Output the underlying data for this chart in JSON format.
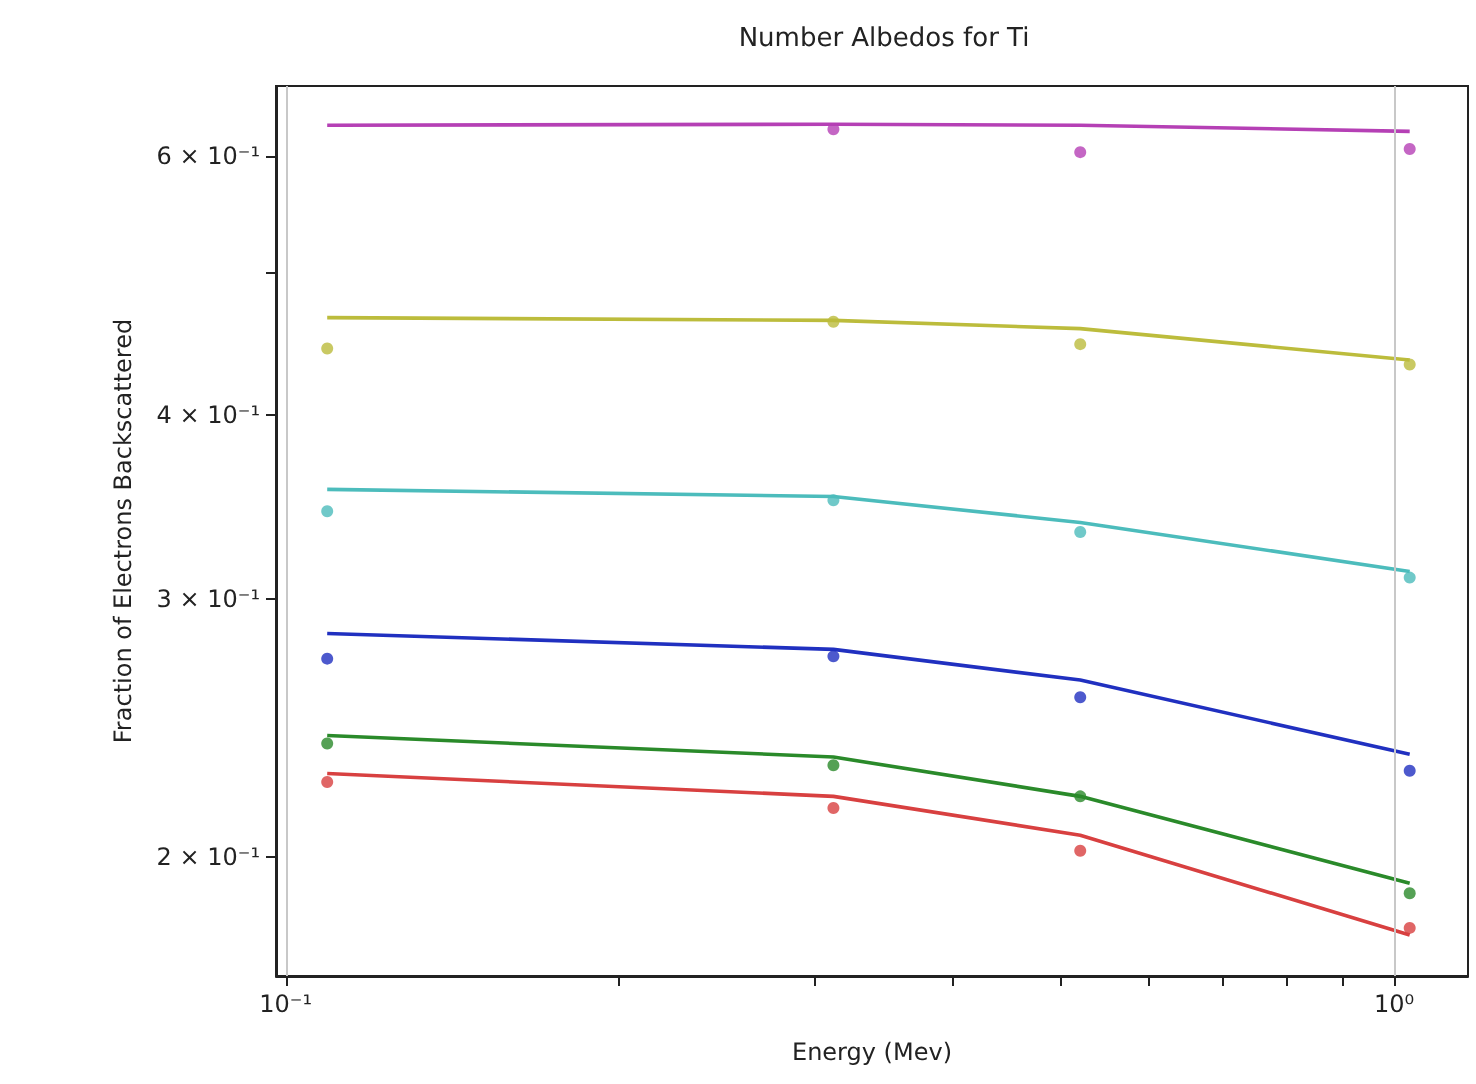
{
  "chart_data": {
    "type": "scatter",
    "title": "Number Albedos for Ti",
    "xlabel": "Energy (Mev)",
    "ylabel": "Fraction of Electrons Backscattered",
    "log": "xy",
    "grid": "x",
    "marker": "circle",
    "xlim": [
      0.098,
      1.166
    ],
    "xticks": [
      {
        "value": 0.1,
        "label": "10⁻¹"
      },
      {
        "value": 0.2,
        "label": null
      },
      {
        "value": 0.3,
        "label": null
      },
      {
        "value": 0.4,
        "label": null
      },
      {
        "value": 0.5,
        "label": null
      },
      {
        "value": 0.6,
        "label": null
      },
      {
        "value": 0.7,
        "label": null
      },
      {
        "value": 0.8,
        "label": null
      },
      {
        "value": 0.9,
        "label": null
      },
      {
        "value": 1,
        "label": "10⁰"
      }
    ],
    "ylim": [
      0.166,
      0.67
    ],
    "yticks": [
      {
        "value": 0.2,
        "label": "2 × 10⁻¹"
      },
      {
        "value": 0.3,
        "label": "3 × 10⁻¹"
      },
      {
        "value": 0.4,
        "label": "4 × 10⁻¹"
      },
      {
        "value": 0.5,
        "label": null
      },
      {
        "value": 0.6,
        "label": "6 × 10⁻¹"
      }
    ],
    "series": [
      {
        "color": "#b540b5",
        "x": [
          0.312,
          0.521,
          1.033
        ],
        "values": [
          0.626,
          0.604,
          0.607
        ]
      },
      {
        "type": "line",
        "marker": "none",
        "color": "#b540b5",
        "x": [
          0.109,
          0.312,
          0.521,
          1.033
        ],
        "values": [
          0.63,
          0.631,
          0.63,
          0.624
        ]
      },
      {
        "color": "#bcbc3c",
        "x": [
          0.109,
          0.312,
          0.521,
          1.033
        ],
        "values": [
          0.444,
          0.463,
          0.447,
          0.433
        ]
      },
      {
        "type": "line",
        "marker": "none",
        "color": "#bcbc3c",
        "x": [
          0.109,
          0.312,
          0.521,
          1.033
        ],
        "values": [
          0.466,
          0.464,
          0.458,
          0.436
        ]
      },
      {
        "color": "#4cbcbc",
        "x": [
          0.109,
          0.312,
          0.521,
          1.033
        ],
        "values": [
          0.344,
          0.35,
          0.333,
          0.31
        ]
      },
      {
        "type": "line",
        "marker": "none",
        "color": "#4cbcbc",
        "x": [
          0.109,
          0.312,
          0.521,
          1.033
        ],
        "values": [
          0.356,
          0.352,
          0.338,
          0.313
        ]
      },
      {
        "color": "#2030c0",
        "x": [
          0.109,
          0.312,
          0.521,
          1.033
        ],
        "values": [
          0.273,
          0.274,
          0.257,
          0.229
        ]
      },
      {
        "type": "line",
        "marker": "none",
        "color": "#2030c0",
        "x": [
          0.109,
          0.312,
          0.521,
          1.033
        ],
        "values": [
          0.284,
          0.277,
          0.264,
          0.235
        ]
      },
      {
        "color": "#2a8a2a",
        "x": [
          0.109,
          0.312,
          0.521,
          1.033
        ],
        "values": [
          0.239,
          0.231,
          0.22,
          0.189
        ]
      },
      {
        "type": "line",
        "marker": "none",
        "color": "#2a8a2a",
        "x": [
          0.109,
          0.312,
          0.521,
          1.033
        ],
        "values": [
          0.242,
          0.234,
          0.22,
          0.192
        ]
      },
      {
        "color": "#d84040",
        "x": [
          0.109,
          0.312,
          0.521,
          1.033
        ],
        "values": [
          0.225,
          0.216,
          0.202,
          0.179
        ]
      },
      {
        "type": "line",
        "marker": "none",
        "color": "#d84040",
        "x": [
          0.109,
          0.312,
          0.521,
          1.033
        ],
        "values": [
          0.228,
          0.22,
          0.207,
          0.177
        ]
      }
    ]
  }
}
